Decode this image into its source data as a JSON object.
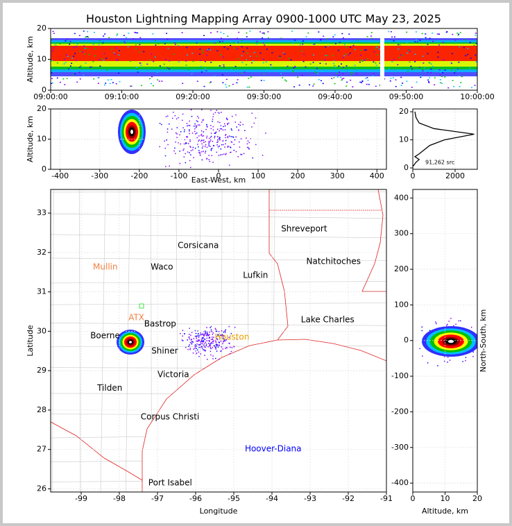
{
  "chart_data": [
    {
      "type": "density",
      "title": "Houston Lightning Mapping Array 0900-1000 UTC May 23, 2025",
      "ylabel": "Altitude, km",
      "xlim": [
        0,
        60
      ],
      "xticks": [
        {
          "value": 0,
          "label": "09:00:00"
        },
        {
          "value": 10,
          "label": "09:10:00"
        },
        {
          "value": 20,
          "label": "09:20:00"
        },
        {
          "value": 30,
          "label": "09:30:00"
        },
        {
          "value": 40,
          "label": "09:40:00"
        },
        {
          "value": 50,
          "label": "09:50:00"
        },
        {
          "value": 60,
          "label": "10:00:00"
        }
      ],
      "ylim": [
        0,
        20
      ],
      "yticks": [
        0,
        10,
        20
      ],
      "grid": false
    },
    {
      "type": "density",
      "xlabel": "East-West, km",
      "ylabel": "Altitude, km",
      "xlim": [
        -424,
        424
      ],
      "xticks": [
        -400,
        -300,
        -200,
        -100,
        0,
        100,
        200,
        300,
        400
      ],
      "ylim": [
        0,
        20
      ],
      "yticks": [
        0,
        10,
        20
      ],
      "grid": true
    },
    {
      "type": "line",
      "annotation": "91,262 src",
      "color": "#000000",
      "x": [
        0,
        150,
        300,
        100,
        300,
        800,
        1500,
        2900,
        1000,
        300,
        150,
        100
      ],
      "values": [
        0.5,
        2,
        3,
        4,
        5,
        8,
        10,
        12,
        14,
        16,
        18,
        20
      ],
      "xlim": [
        0,
        3050
      ],
      "xticks": [
        0,
        2000
      ],
      "ylim": [
        -0.5,
        21
      ],
      "yticks": [
        0,
        10,
        20
      ],
      "grid": true
    },
    {
      "type": "map",
      "xlabel": "Longitude",
      "ylabel": "Latitude",
      "xlim": [
        -99.8,
        -91
      ],
      "xticks": [
        -99,
        -98,
        -97,
        -96,
        -95,
        -94,
        -93,
        -92,
        -91
      ],
      "ylim": [
        25.92,
        33.6
      ],
      "yticks": [
        26,
        27,
        28,
        29,
        30,
        31,
        32,
        33
      ],
      "grid": true,
      "cities": [
        {
          "name": "Shreveport",
          "lon": -93.76,
          "lat": 32.6,
          "color": "#000000"
        },
        {
          "name": "Corsicana",
          "lon": -96.47,
          "lat": 32.17,
          "color": "#000000"
        },
        {
          "name": "Natchitoches",
          "lon": -93.1,
          "lat": 31.77,
          "color": "#000000"
        },
        {
          "name": "Mullin",
          "lon": -98.69,
          "lat": 31.63,
          "color": "#f08040"
        },
        {
          "name": "Waco",
          "lon": -97.18,
          "lat": 31.63,
          "color": "#000000"
        },
        {
          "name": "Lufkin",
          "lon": -94.76,
          "lat": 31.42,
          "color": "#000000"
        },
        {
          "name": "ATX",
          "lon": -97.76,
          "lat": 30.34,
          "color": "#f08040"
        },
        {
          "name": "Bastrop",
          "lon": -97.35,
          "lat": 30.18,
          "color": "#000000"
        },
        {
          "name": "Lake Charles",
          "lon": -93.24,
          "lat": 30.29,
          "color": "#000000"
        },
        {
          "name": "Boerne",
          "lon": -98.76,
          "lat": 29.88,
          "color": "#000000"
        },
        {
          "name": "Shiner",
          "lon": -97.16,
          "lat": 29.5,
          "color": "#000000"
        },
        {
          "name": "Houston",
          "lon": -95.5,
          "lat": 29.85,
          "color": "#e8a000"
        },
        {
          "name": "Victoria",
          "lon": -97.0,
          "lat": 28.9,
          "color": "#000000"
        },
        {
          "name": "Tilden",
          "lon": -98.58,
          "lat": 28.55,
          "color": "#000000"
        },
        {
          "name": "Corpus Christi",
          "lon": -97.44,
          "lat": 27.82,
          "color": "#000000"
        },
        {
          "name": "Hoover-Diana",
          "lon": -94.71,
          "lat": 27.01,
          "color": "#0000ff"
        },
        {
          "name": "Port Isabel",
          "lon": -97.24,
          "lat": 26.15,
          "color": "#000000"
        }
      ]
    },
    {
      "type": "density",
      "xlabel": "Altitude, km",
      "ylabel": "North-South, km",
      "xlim": [
        0,
        20
      ],
      "xticks": [
        0,
        10,
        20
      ],
      "ylim": [
        -425,
        424
      ],
      "yticks": [
        -400,
        -300,
        -200,
        -100,
        0,
        100,
        200,
        300,
        400
      ],
      "grid": true
    }
  ]
}
